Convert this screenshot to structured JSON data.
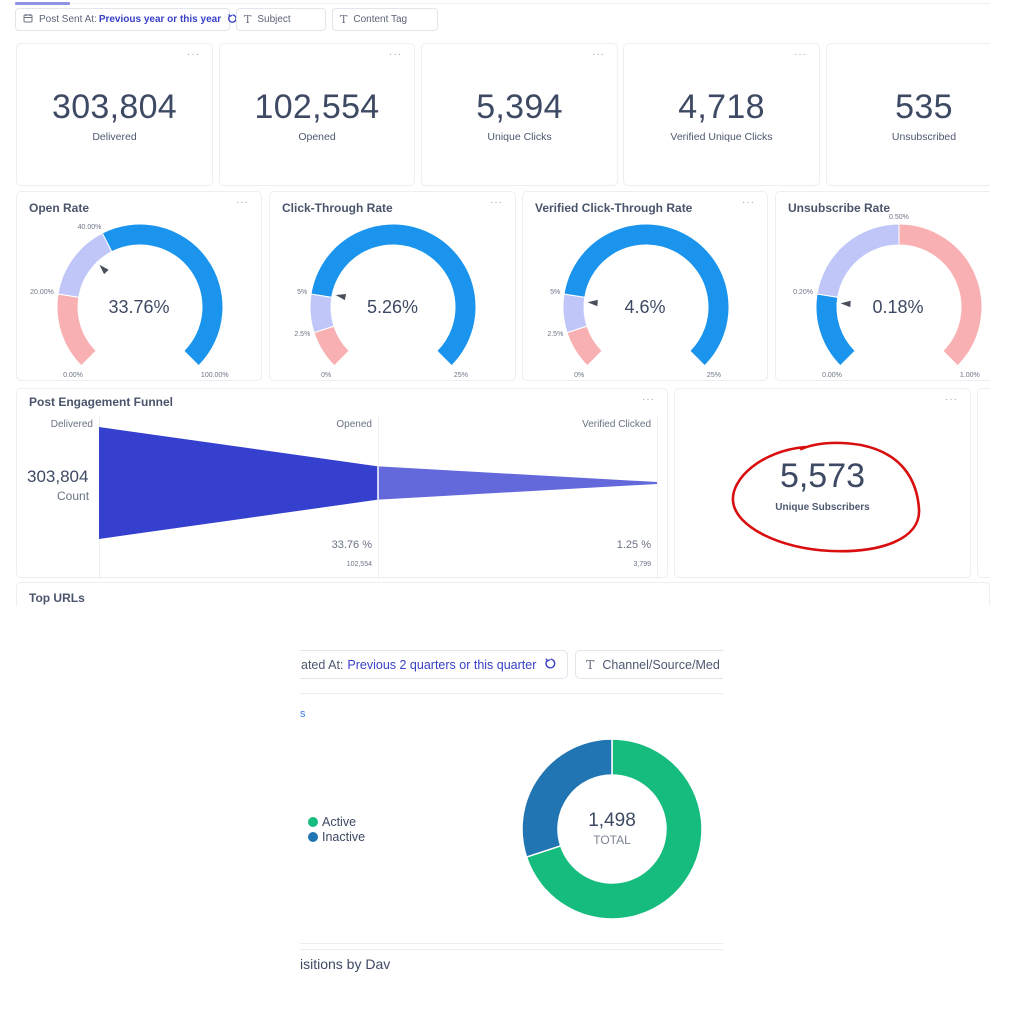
{
  "top": {
    "filters": [
      {
        "icon": "calendar-icon",
        "label": "Post Sent At:",
        "value": "Previous year or this year",
        "has_reset": true
      },
      {
        "icon": "text-icon",
        "label": "Subject"
      },
      {
        "icon": "text-icon",
        "label": "Content Tag"
      }
    ],
    "menu_glyph": "···",
    "kpis": [
      {
        "value": "303,804",
        "label": "Delivered"
      },
      {
        "value": "102,554",
        "label": "Opened"
      },
      {
        "value": "5,394",
        "label": "Unique Clicks"
      },
      {
        "value": "4,718",
        "label": "Verified Unique Clicks"
      },
      {
        "value": "535",
        "label": "Unsubscribed"
      }
    ],
    "gauges": [
      {
        "title": "Open Rate",
        "display": "33.76%",
        "value": 33.76,
        "min": 0,
        "max": 100,
        "segments": [
          {
            "from": 0,
            "to": 20,
            "color": "#f9b0b2"
          },
          {
            "from": 20,
            "to": 40,
            "color": "#c0c7f8"
          },
          {
            "from": 40,
            "to": 100,
            "color": "#1a94ec"
          }
        ],
        "ticks": [
          "0.00%",
          "20.00%",
          "40.00%",
          "100.00%"
        ]
      },
      {
        "title": "Click-Through Rate",
        "display": "5.26%",
        "value": 5.26,
        "min": 0,
        "max": 25,
        "segments": [
          {
            "from": 0,
            "to": 2.5,
            "color": "#f9b0b2"
          },
          {
            "from": 2.5,
            "to": 5,
            "color": "#c0c7f8"
          },
          {
            "from": 5,
            "to": 25,
            "color": "#1a94ec"
          }
        ],
        "ticks": [
          "0%",
          "2.5%",
          "5%",
          "25%"
        ]
      },
      {
        "title": "Verified Click-Through Rate",
        "display": "4.6%",
        "value": 4.6,
        "min": 0,
        "max": 25,
        "segments": [
          {
            "from": 0,
            "to": 2.5,
            "color": "#f9b0b2"
          },
          {
            "from": 2.5,
            "to": 5,
            "color": "#c0c7f8"
          },
          {
            "from": 5,
            "to": 25,
            "color": "#1a94ec"
          }
        ],
        "ticks": [
          "0%",
          "2.5%",
          "5%",
          "25%"
        ]
      },
      {
        "title": "Unsubscribe Rate",
        "display": "0.18%",
        "value": 0.18,
        "min": 0,
        "max": 1,
        "segments": [
          {
            "from": 0,
            "to": 0.2,
            "color": "#1a94ec"
          },
          {
            "from": 0.2,
            "to": 0.5,
            "color": "#c0c7f8"
          },
          {
            "from": 0.5,
            "to": 1,
            "color": "#f9b0b2"
          }
        ],
        "ticks": [
          "0.00%",
          "0.20%",
          "0.50%",
          "1.00%"
        ]
      }
    ],
    "funnel": {
      "title": "Post Engagement Funnel",
      "first_value": "303,804",
      "first_caption": "Count",
      "stages": [
        {
          "label": "Delivered",
          "count": 303804,
          "count_label": "",
          "pct_label": ""
        },
        {
          "label": "Opened",
          "count": 102554,
          "count_label": "102,554",
          "pct_label": "33.76 %"
        },
        {
          "label": "Verified Clicked",
          "count": 3799,
          "count_label": "3,799",
          "pct_label": "1.25 %"
        }
      ],
      "colors": [
        "#3540cf",
        "#6369da"
      ]
    },
    "unique_subscribers": {
      "value": "5,573",
      "label": "Unique Subscribers",
      "annotation_color": "#d90f0f"
    },
    "top_urls_title": "Top URLs"
  },
  "bottom": {
    "filter_date": {
      "label": "ated At:",
      "value": "Previous 2 quarters or this quarter"
    },
    "filter_channel": {
      "label": "Channel/Source/Med"
    },
    "link_stub": "s",
    "section_title": "isitions by Dav",
    "chart_data": {
      "type": "pie",
      "title": "",
      "categories": [
        "Active",
        "Inactive"
      ],
      "values": [
        1048,
        450
      ],
      "colors": [
        "#16bb7e",
        "#2275b3"
      ],
      "total": 1498,
      "total_label": "1,498",
      "total_caption": "TOTAL",
      "legend": "left"
    }
  }
}
